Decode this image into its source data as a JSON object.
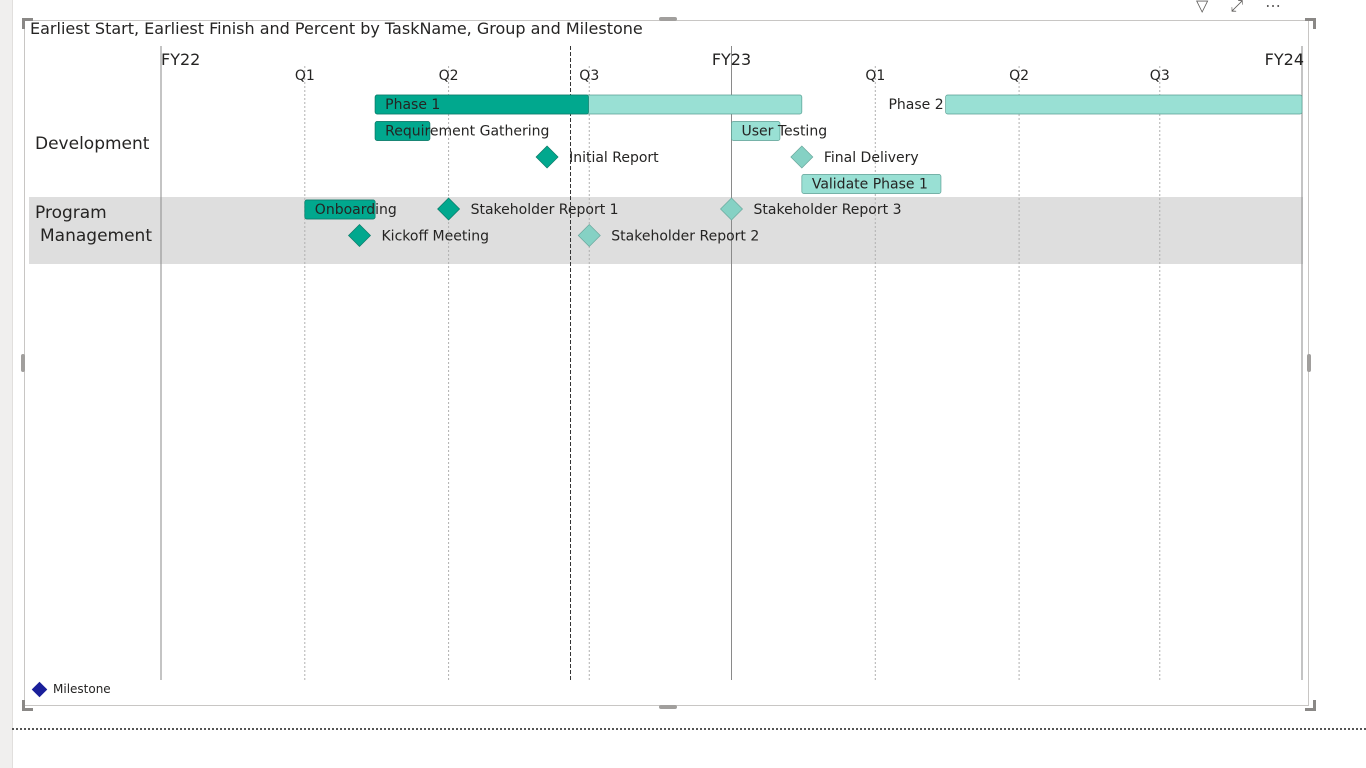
{
  "chart_title": "Earliest Start, Earliest Finish and Percent by TaskName, Group and Milestone",
  "header_icons": [
    "filter-icon",
    "focus-mode-icon",
    "more-options-icon"
  ],
  "colors": {
    "progress": "#01a88e",
    "remaining": "#99e0d4",
    "milestone_done": "#01a88e",
    "milestone_future": "#85d1c4",
    "group_band": "#dedede",
    "legend_milestone": "#1a1f9a"
  },
  "legend": {
    "label": "Milestone"
  },
  "chart_data": {
    "type": "gantt",
    "time_axis": {
      "start": "2021-07-01",
      "end": "2023-07-01",
      "years": [
        {
          "label": "FY22",
          "date": "2021-07-01"
        },
        {
          "label": "FY23",
          "date": "2022-07-01"
        },
        {
          "label": "FY24",
          "date": "2023-07-01"
        }
      ],
      "quarters": [
        {
          "label": "Q1",
          "date": "2021-10-01"
        },
        {
          "label": "Q2",
          "date": "2022-01-01"
        },
        {
          "label": "Q3",
          "date": "2022-04-01"
        },
        {
          "label": "Q1",
          "date": "2022-10-01"
        },
        {
          "label": "Q2",
          "date": "2023-01-01"
        },
        {
          "label": "Q3",
          "date": "2023-04-01"
        }
      ],
      "today": "2022-03-20"
    },
    "groups": [
      {
        "name": "Development",
        "band": false,
        "items": [
          {
            "name": "Phase 1",
            "type": "task",
            "row": 0,
            "start": "2021-11-15",
            "finish": "2022-08-15",
            "percent": 50,
            "label_position": "inside"
          },
          {
            "name": "Phase 2",
            "type": "task",
            "row": 0,
            "start": "2022-11-15",
            "finish": "2023-07-01",
            "percent": 0,
            "label_position": "left"
          },
          {
            "name": "Requirement Gathering",
            "type": "task",
            "row": 1,
            "start": "2021-11-15",
            "finish": "2021-12-20",
            "percent": 100,
            "label_position": "inside"
          },
          {
            "name": "User Testing",
            "type": "task",
            "row": 1,
            "start": "2022-07-01",
            "finish": "2022-08-01",
            "percent": 0,
            "label_position": "inside"
          },
          {
            "name": "Initial Report",
            "type": "milestone",
            "row": 2,
            "date": "2022-03-05",
            "done": true
          },
          {
            "name": "Final Delivery",
            "type": "milestone",
            "row": 2,
            "date": "2022-08-15",
            "done": false
          },
          {
            "name": "Validate Phase 1",
            "type": "task",
            "row": 3,
            "start": "2022-08-15",
            "finish": "2022-11-12",
            "percent": 0,
            "label_position": "inside"
          }
        ]
      },
      {
        "name": "Program Management",
        "band": true,
        "items": [
          {
            "name": "Onboarding",
            "type": "task",
            "row": 0,
            "start": "2021-10-01",
            "finish": "2021-11-15",
            "percent": 100,
            "label_position": "inside"
          },
          {
            "name": "Stakeholder Report 1",
            "type": "milestone",
            "row": 0,
            "date": "2022-01-01",
            "done": true
          },
          {
            "name": "Stakeholder Report 3",
            "type": "milestone",
            "row": 0,
            "date": "2022-07-01",
            "done": false
          },
          {
            "name": "Kickoff Meeting",
            "type": "milestone",
            "row": 1,
            "date": "2021-11-05",
            "done": true
          },
          {
            "name": "Stakeholder Report 2",
            "type": "milestone",
            "row": 1,
            "date": "2022-04-01",
            "done": false
          }
        ]
      }
    ]
  }
}
